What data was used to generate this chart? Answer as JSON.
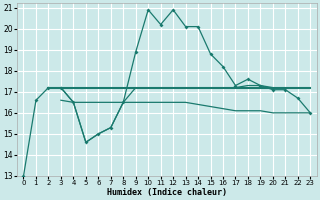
{
  "xlabel": "Humidex (Indice chaleur)",
  "bg_color": "#cce9e9",
  "grid_color": "#ffffff",
  "line_color": "#1a7a6e",
  "xlim": [
    -0.5,
    23.5
  ],
  "ylim": [
    13,
    21.2
  ],
  "xticks": [
    0,
    1,
    2,
    3,
    4,
    5,
    6,
    7,
    8,
    9,
    10,
    11,
    12,
    13,
    14,
    15,
    16,
    17,
    18,
    19,
    20,
    21,
    22,
    23
  ],
  "yticks": [
    13,
    14,
    15,
    16,
    17,
    18,
    19,
    20,
    21
  ],
  "line1_x": [
    0,
    1,
    2,
    3,
    4,
    5,
    6,
    7,
    8,
    9,
    10,
    11,
    12,
    13,
    14,
    15,
    16,
    17,
    18,
    19,
    20,
    21,
    22,
    23
  ],
  "line1_y": [
    13.0,
    16.6,
    17.2,
    17.2,
    16.5,
    14.6,
    15.0,
    15.3,
    16.5,
    18.9,
    20.9,
    20.2,
    20.9,
    20.1,
    20.1,
    18.8,
    18.2,
    17.3,
    17.6,
    17.3,
    17.1,
    17.1,
    16.7,
    16.0
  ],
  "line2_x": [
    2,
    3,
    4,
    5,
    6,
    7,
    8,
    9,
    10,
    11,
    12,
    13,
    14,
    15,
    16,
    17,
    18,
    19,
    20,
    21,
    22,
    23
  ],
  "line2_y": [
    17.2,
    17.2,
    17.2,
    17.2,
    17.2,
    17.2,
    17.2,
    17.2,
    17.2,
    17.2,
    17.2,
    17.2,
    17.2,
    17.2,
    17.2,
    17.2,
    17.2,
    17.2,
    17.2,
    17.2,
    17.2,
    17.2
  ],
  "line3_x": [
    3,
    4,
    5,
    6,
    7,
    8,
    9,
    10,
    11,
    12,
    13,
    14,
    15,
    16,
    17,
    18,
    19,
    20,
    21,
    22,
    23
  ],
  "line3_y": [
    16.6,
    16.5,
    16.5,
    16.5,
    16.5,
    16.5,
    16.5,
    16.5,
    16.5,
    16.5,
    16.5,
    16.4,
    16.3,
    16.2,
    16.1,
    16.1,
    16.1,
    16.0,
    16.0,
    16.0,
    16.0
  ],
  "line4_x": [
    3,
    4,
    5,
    6,
    7,
    8,
    9,
    10,
    11,
    12,
    13,
    14,
    15,
    16,
    17,
    18,
    19,
    20,
    21,
    22,
    23
  ],
  "line4_y": [
    17.2,
    16.5,
    14.6,
    15.0,
    15.3,
    16.5,
    17.2,
    17.2,
    17.2,
    17.2,
    17.2,
    17.2,
    17.2,
    17.2,
    17.2,
    17.3,
    17.3,
    17.2,
    17.2,
    17.2,
    17.2
  ]
}
